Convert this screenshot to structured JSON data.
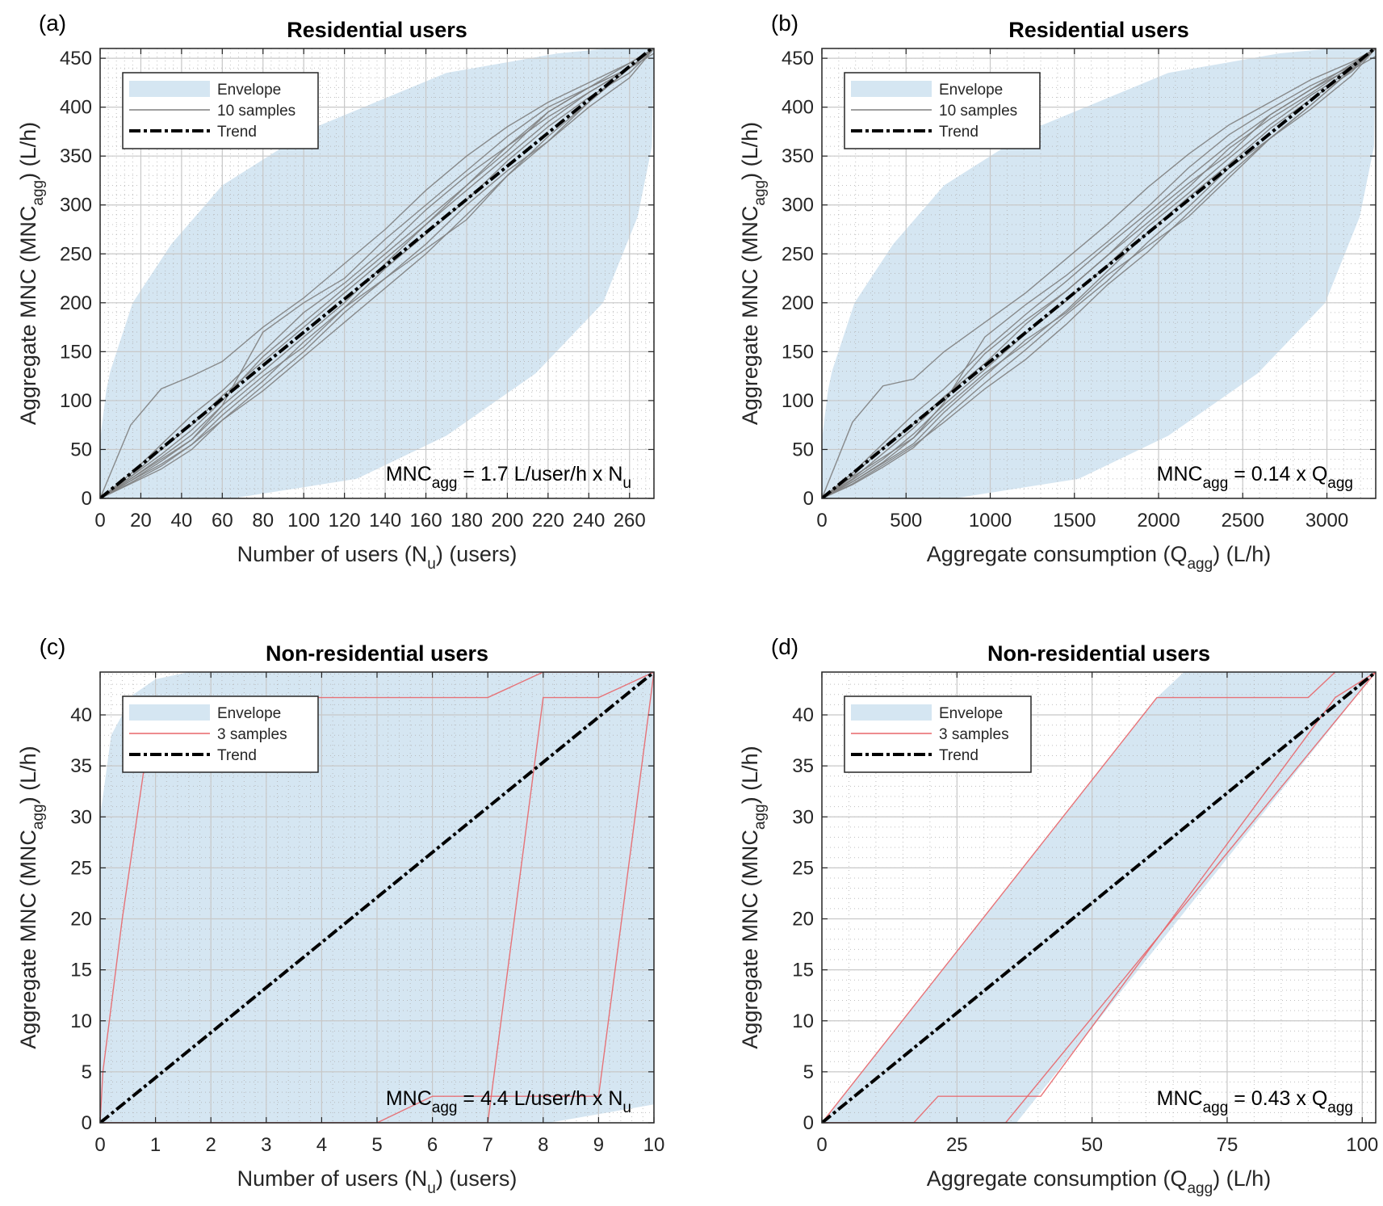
{
  "chart_data": [
    {
      "panel_label": "(a)",
      "type": "line",
      "title": "Residential users",
      "xlabel": {
        "pre": "Number of users (N",
        "sub": "u",
        "post": ") (users)"
      },
      "ylabel": {
        "pre": "Aggregate MNC (MNC",
        "sub": "agg",
        "post": ") (L/h)"
      },
      "xlim": [
        0,
        272
      ],
      "ylim": [
        0,
        460
      ],
      "xticks": [
        0,
        20,
        40,
        60,
        80,
        100,
        120,
        140,
        160,
        180,
        200,
        220,
        240,
        260
      ],
      "yticks": [
        0,
        50,
        100,
        150,
        200,
        250,
        300,
        350,
        400,
        450
      ],
      "minor_per_major": 5,
      "grid": true,
      "legend": {
        "position": "top-left",
        "entries": [
          "Envelope",
          "10 samples",
          "Trend"
        ]
      },
      "annotation": {
        "lhs": "MNC",
        "lhs_sub": "agg",
        "rhs": " = 1.7 L/user/h x N",
        "rhs_sub": "u"
      },
      "trend": {
        "slope": 1.7,
        "x": [
          0,
          272
        ],
        "y": [
          0,
          462
        ]
      },
      "envelope": {
        "upper": [
          [
            0,
            0
          ],
          [
            0,
            60
          ],
          [
            3,
            110
          ],
          [
            5,
            130
          ],
          [
            16,
            200
          ],
          [
            35,
            260
          ],
          [
            60,
            320
          ],
          [
            104,
            378
          ],
          [
            170,
            435
          ],
          [
            225,
            455
          ],
          [
            250,
            460
          ],
          [
            272,
            460
          ]
        ],
        "lower": [
          [
            0,
            0
          ],
          [
            65,
            0
          ],
          [
            126,
            20
          ],
          [
            170,
            64
          ],
          [
            214,
            128
          ],
          [
            247,
            200
          ],
          [
            264,
            288
          ],
          [
            271,
            360
          ],
          [
            272,
            460
          ]
        ]
      },
      "sample_color": "#7f7f7f",
      "samples_x": [
        0,
        15,
        30,
        45,
        60,
        80,
        100,
        120,
        140,
        160,
        180,
        200,
        220,
        240,
        260,
        272
      ],
      "samples_y": [
        [
          0,
          75,
          112,
          125,
          140,
          175,
          205,
          240,
          275,
          315,
          350,
          380,
          405,
          425,
          445,
          460
        ],
        [
          0,
          20,
          40,
          60,
          95,
          170,
          200,
          225,
          265,
          300,
          335,
          370,
          400,
          420,
          440,
          460
        ],
        [
          0,
          18,
          35,
          55,
          85,
          120,
          160,
          195,
          225,
          255,
          285,
          330,
          370,
          405,
          440,
          460
        ],
        [
          0,
          22,
          45,
          70,
          100,
          145,
          180,
          215,
          250,
          285,
          320,
          355,
          395,
          420,
          445,
          460
        ],
        [
          0,
          15,
          30,
          50,
          80,
          115,
          150,
          190,
          225,
          260,
          300,
          335,
          365,
          400,
          430,
          460
        ],
        [
          0,
          25,
          55,
          85,
          110,
          150,
          190,
          220,
          255,
          295,
          330,
          360,
          395,
          420,
          440,
          460
        ],
        [
          0,
          20,
          42,
          65,
          95,
          130,
          165,
          200,
          240,
          280,
          315,
          350,
          385,
          415,
          440,
          455
        ],
        [
          0,
          18,
          38,
          60,
          90,
          125,
          155,
          195,
          235,
          270,
          305,
          345,
          380,
          410,
          435,
          460
        ],
        [
          0,
          22,
          50,
          75,
          105,
          140,
          175,
          210,
          245,
          280,
          320,
          360,
          390,
          415,
          440,
          460
        ],
        [
          0,
          16,
          33,
          55,
          80,
          110,
          145,
          180,
          215,
          250,
          290,
          330,
          365,
          405,
          440,
          460
        ]
      ]
    },
    {
      "panel_label": "(b)",
      "type": "line",
      "title": "Residential users",
      "xlabel": {
        "pre": "Aggregate consumption (Q",
        "sub": "agg",
        "post": ") (L/h)"
      },
      "ylabel": {
        "pre": "Aggregate MNC (MNC",
        "sub": "agg",
        "post": ") (L/h)"
      },
      "xlim": [
        0,
        3290
      ],
      "ylim": [
        0,
        460
      ],
      "xticks": [
        0,
        500,
        1000,
        1500,
        2000,
        2500,
        3000
      ],
      "yticks": [
        0,
        50,
        100,
        150,
        200,
        250,
        300,
        350,
        400,
        450
      ],
      "minor_per_major": 5,
      "grid": true,
      "legend": {
        "position": "top-left",
        "entries": [
          "Envelope",
          "10 samples",
          "Trend"
        ]
      },
      "annotation": {
        "lhs": "MNC",
        "lhs_sub": "agg",
        "rhs": " = 0.14 x Q",
        "rhs_sub": "agg"
      },
      "trend": {
        "slope": 0.14,
        "x": [
          0,
          3290
        ],
        "y": [
          0,
          461
        ]
      },
      "envelope": {
        "upper": [
          [
            0,
            0
          ],
          [
            0,
            60
          ],
          [
            36,
            110
          ],
          [
            60,
            130
          ],
          [
            194,
            200
          ],
          [
            424,
            260
          ],
          [
            726,
            320
          ],
          [
            1258,
            378
          ],
          [
            2057,
            435
          ],
          [
            2720,
            455
          ],
          [
            3025,
            460
          ],
          [
            3290,
            460
          ]
        ],
        "lower": [
          [
            0,
            0
          ],
          [
            786,
            0
          ],
          [
            1525,
            20
          ],
          [
            2057,
            64
          ],
          [
            2590,
            128
          ],
          [
            2990,
            200
          ],
          [
            3195,
            288
          ],
          [
            3280,
            360
          ],
          [
            3290,
            460
          ]
        ]
      },
      "sample_color": "#7f7f7f",
      "samples_x": [
        0,
        182,
        363,
        545,
        726,
        968,
        1210,
        1452,
        1694,
        1936,
        2178,
        2420,
        2662,
        2904,
        3146,
        3290
      ],
      "samples_y": [
        [
          0,
          78,
          115,
          122,
          150,
          180,
          210,
          245,
          280,
          318,
          352,
          382,
          405,
          428,
          446,
          460
        ],
        [
          0,
          22,
          42,
          62,
          98,
          165,
          198,
          228,
          262,
          298,
          338,
          372,
          398,
          422,
          442,
          460
        ],
        [
          0,
          17,
          36,
          56,
          88,
          125,
          162,
          190,
          228,
          258,
          288,
          328,
          368,
          402,
          438,
          460
        ],
        [
          0,
          20,
          46,
          72,
          102,
          148,
          182,
          212,
          248,
          288,
          322,
          352,
          392,
          418,
          444,
          460
        ],
        [
          0,
          14,
          32,
          52,
          82,
          118,
          152,
          188,
          222,
          262,
          298,
          338,
          368,
          398,
          432,
          460
        ],
        [
          0,
          26,
          56,
          86,
          112,
          152,
          188,
          222,
          258,
          292,
          328,
          362,
          392,
          418,
          440,
          460
        ],
        [
          0,
          19,
          40,
          66,
          96,
          132,
          168,
          202,
          238,
          278,
          312,
          348,
          382,
          412,
          438,
          452
        ],
        [
          0,
          17,
          37,
          62,
          92,
          128,
          158,
          192,
          232,
          272,
          308,
          342,
          378,
          408,
          436,
          460
        ],
        [
          0,
          23,
          52,
          76,
          104,
          138,
          178,
          212,
          248,
          282,
          318,
          358,
          388,
          414,
          442,
          460
        ],
        [
          0,
          15,
          34,
          54,
          78,
          112,
          142,
          178,
          218,
          252,
          292,
          332,
          368,
          402,
          438,
          460
        ]
      ]
    },
    {
      "panel_label": "(c)",
      "type": "line",
      "title": "Non-residential users",
      "xlabel": {
        "pre": "Number of users (N",
        "sub": "u",
        "post": ") (users)"
      },
      "ylabel": {
        "pre": "Aggregate MNC (MNC",
        "sub": "agg",
        "post": ") (L/h)"
      },
      "xlim": [
        0,
        10
      ],
      "ylim": [
        0,
        44.2
      ],
      "xticks": [
        0,
        1,
        2,
        3,
        4,
        5,
        6,
        7,
        8,
        9,
        10
      ],
      "yticks": [
        0,
        5,
        10,
        15,
        20,
        25,
        30,
        35,
        40
      ],
      "minor_per_major": 5,
      "grid": true,
      "legend": {
        "position": "top-left",
        "entries": [
          "Envelope",
          "3 samples",
          "Trend"
        ]
      },
      "annotation": {
        "lhs": "MNC",
        "lhs_sub": "agg",
        "rhs": " = 4.4 L/user/h x N",
        "rhs_sub": "u"
      },
      "trend": {
        "slope": 4.42,
        "x": [
          0,
          10
        ],
        "y": [
          0,
          44.2
        ]
      },
      "envelope": {
        "upper": [
          [
            0,
            0
          ],
          [
            0,
            30
          ],
          [
            0.2,
            38
          ],
          [
            0.6,
            42
          ],
          [
            1.0,
            43.5
          ],
          [
            1.6,
            44.2
          ],
          [
            10,
            44.2
          ]
        ],
        "lower": [
          [
            0,
            0
          ],
          [
            8.1,
            0
          ],
          [
            10,
            1.8
          ],
          [
            10,
            44.2
          ]
        ]
      },
      "sample_color": "#e8666a",
      "samples": [
        [
          [
            0,
            0
          ],
          [
            0.05,
            5
          ],
          [
            0.4,
            20
          ],
          [
            0.8,
            35
          ],
          [
            1.2,
            41.7
          ],
          [
            7,
            41.7
          ],
          [
            8,
            44.2
          ],
          [
            10,
            44.2
          ]
        ],
        [
          [
            0,
            0
          ],
          [
            5,
            0
          ],
          [
            6,
            2.6
          ],
          [
            9,
            2.6
          ],
          [
            10,
            44.2
          ]
        ],
        [
          [
            0,
            0
          ],
          [
            7,
            0
          ],
          [
            8,
            41.7
          ],
          [
            9,
            41.7
          ],
          [
            10,
            44.2
          ]
        ]
      ]
    },
    {
      "panel_label": "(d)",
      "type": "line",
      "title": "Non-residential users",
      "xlabel": {
        "pre": "Aggregate consumption (Q",
        "sub": "agg",
        "post": ") (L/h)"
      },
      "ylabel": {
        "pre": "Aggregate MNC (MNC",
        "sub": "agg",
        "post": ") (L/h)"
      },
      "xlim": [
        0,
        102.5
      ],
      "ylim": [
        0,
        44.2
      ],
      "xticks": [
        0,
        25,
        50,
        75,
        100
      ],
      "yticks": [
        0,
        5,
        10,
        15,
        20,
        25,
        30,
        35,
        40
      ],
      "minor_per_major": 5,
      "grid": true,
      "legend": {
        "position": "top-left",
        "entries": [
          "Envelope",
          "3 samples",
          "Trend"
        ]
      },
      "annotation": {
        "lhs": "MNC",
        "lhs_sub": "agg",
        "rhs": " = 0.43 x Q",
        "rhs_sub": "agg"
      },
      "trend": {
        "slope": 0.43,
        "x": [
          0,
          102.5
        ],
        "y": [
          0,
          44.2
        ]
      },
      "envelope": {
        "upper": [
          [
            0,
            0
          ],
          [
            62,
            41.7
          ],
          [
            67,
            44.2
          ],
          [
            102.5,
            44.2
          ]
        ],
        "lower": [
          [
            0,
            0
          ],
          [
            36,
            0
          ],
          [
            102.5,
            44.2
          ]
        ]
      },
      "sample_color": "#e8666a",
      "samples": [
        [
          [
            0,
            0
          ],
          [
            62,
            41.7
          ],
          [
            90,
            41.7
          ],
          [
            95,
            44.2
          ]
        ],
        [
          [
            0,
            0
          ],
          [
            17,
            0
          ],
          [
            21.5,
            2.6
          ],
          [
            40.5,
            2.6
          ],
          [
            95,
            41.7
          ],
          [
            102.5,
            44.2
          ]
        ],
        [
          [
            0,
            0
          ],
          [
            34,
            0
          ],
          [
            102.5,
            44.2
          ]
        ]
      ]
    }
  ],
  "colors": {
    "envelope": "#d5e6f2",
    "trend": "#000000",
    "major_grid": "#c8c8c8",
    "minor_grid": "#b0b0b0",
    "axis": "#262626"
  }
}
